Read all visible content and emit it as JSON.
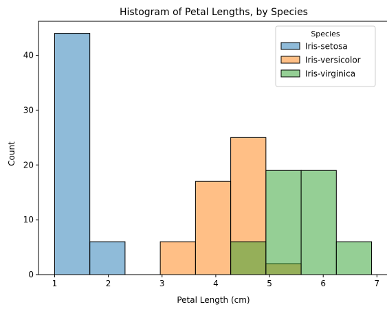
{
  "chart_data": {
    "type": "histogram",
    "title": "Histogram of Petal Lengths, by Species",
    "xlabel": "Petal Length (cm)",
    "ylabel": "Count",
    "xlim": [
      0.7,
      7.2
    ],
    "ylim": [
      0,
      46.2
    ],
    "xticks": [
      1,
      2,
      3,
      4,
      5,
      6,
      7
    ],
    "yticks": [
      0,
      10,
      20,
      30,
      40
    ],
    "bin_edges": [
      1.0,
      1.6556,
      2.3111,
      2.9667,
      3.6222,
      4.2778,
      4.9333,
      5.5889,
      6.2444,
      6.9
    ],
    "series": [
      {
        "name": "Iris-setosa",
        "color": "#1f77b4",
        "counts": [
          44,
          6,
          0,
          0,
          0,
          0,
          0,
          0,
          0
        ]
      },
      {
        "name": "Iris-versicolor",
        "color": "#ff7f0e",
        "counts": [
          0,
          0,
          0,
          6,
          17,
          25,
          2,
          0,
          0
        ]
      },
      {
        "name": "Iris-virginica",
        "color": "#2ca02c",
        "counts": [
          0,
          0,
          0,
          0,
          0,
          6,
          19,
          19,
          6
        ]
      }
    ],
    "legend": {
      "title": "Species",
      "position": "upper right"
    },
    "grid": false
  }
}
